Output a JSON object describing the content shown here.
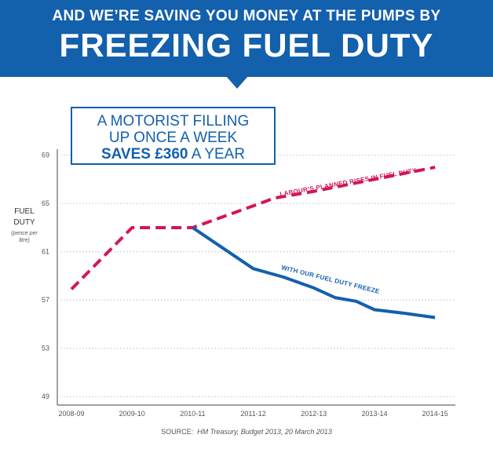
{
  "header": {
    "subtitle": "AND WE’RE SAVING YOU MONEY AT THE PUMPS BY",
    "title": "FREEZING FUEL DUTY"
  },
  "callout": {
    "line1": "A MOTORIST FILLING",
    "line2": "UP ONCE A WEEK",
    "saves_bold": "SAVES £360",
    "saves_rest": " A YEAR"
  },
  "axis_label": {
    "main_line1": "FUEL",
    "main_line2": "DUTY",
    "unit_line1": "(pence per",
    "unit_line2": "litre)"
  },
  "source": {
    "prefix": "SOURCE:",
    "text": "HM Treasury, Budget 2013, 20 March 2013"
  },
  "colors": {
    "banner": "#1360ad",
    "labour": "#d4145a",
    "freeze": "#1360ad",
    "grid": "#d0d0d0"
  },
  "chart_data": {
    "type": "line",
    "title": "FREEZING FUEL DUTY",
    "ylabel": "FUEL DUTY (pence per litre)",
    "xlabel": "",
    "categories": [
      "2008-09",
      "2009-10",
      "2010-11",
      "2011-12",
      "2012-13",
      "2013-14",
      "2014-15"
    ],
    "yticks": [
      49,
      53,
      57,
      61,
      65,
      69
    ],
    "ylim": [
      48.3,
      69.5
    ],
    "grid": true,
    "series": [
      {
        "name": "LABOUR’S PLANNED RISES IN FUEL DUTY",
        "style": "dashed",
        "color": "#d4145a",
        "points": [
          [
            0,
            57.9
          ],
          [
            1,
            63.0
          ],
          [
            2,
            63.0
          ],
          [
            3,
            64.8
          ],
          [
            3.35,
            65.45
          ],
          [
            4,
            66.0
          ],
          [
            5,
            67.0
          ],
          [
            6,
            68.0
          ]
        ]
      },
      {
        "name": "WITH OUR FUEL DUTY FREEZE",
        "style": "solid",
        "color": "#1360ad",
        "points": [
          [
            2,
            63.0
          ],
          [
            3,
            59.6
          ],
          [
            3.5,
            58.9
          ],
          [
            4,
            58.0
          ],
          [
            4.35,
            57.2
          ],
          [
            4.7,
            56.9
          ],
          [
            5,
            56.2
          ],
          [
            5.5,
            55.9
          ],
          [
            6,
            55.55
          ]
        ]
      }
    ]
  }
}
